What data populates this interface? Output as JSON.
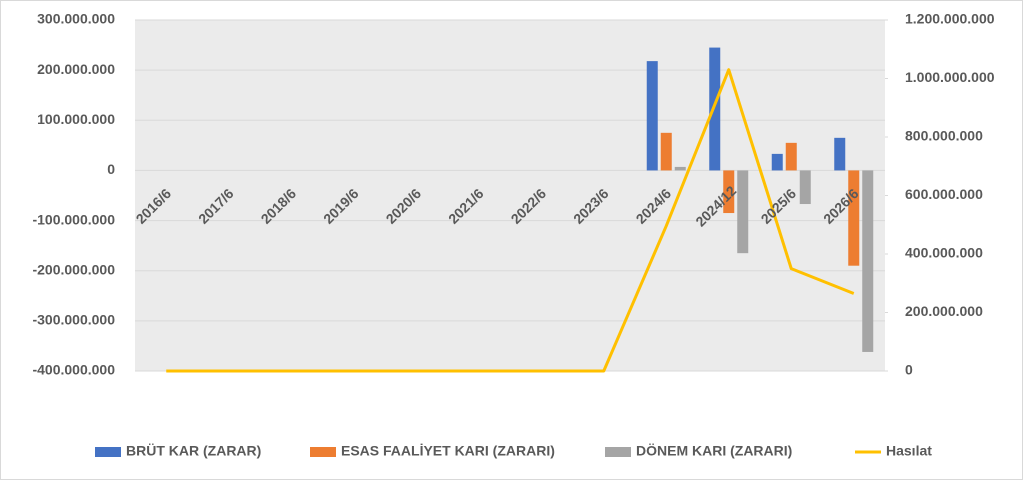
{
  "chart_data": {
    "type": "bar",
    "categories": [
      "2016/6",
      "2017/6",
      "2018/6",
      "2019/6",
      "2020/6",
      "2021/6",
      "2022/6",
      "2023/6",
      "2024/6",
      "2024/12",
      "2025/6",
      "2026/6"
    ],
    "series": [
      {
        "name": "BRÜT KAR (ZARAR)",
        "color": "#4472c4",
        "values": [
          0,
          0,
          0,
          0,
          0,
          0,
          0,
          0,
          218000000,
          245000000,
          33000000,
          65000000
        ]
      },
      {
        "name": "ESAS FAALİYET KARI (ZARARI)",
        "color": "#ed7d31",
        "values": [
          0,
          0,
          0,
          0,
          0,
          0,
          0,
          0,
          75000000,
          -85000000,
          55000000,
          -190000000
        ]
      },
      {
        "name": "DÖNEM KARI (ZARARI)",
        "color": "#a5a5a5",
        "values": [
          0,
          0,
          0,
          0,
          0,
          0,
          0,
          0,
          7000000,
          -165000000,
          -67000000,
          -362000000
        ]
      },
      {
        "name": "Hasılat",
        "color": "#ffc000",
        "type": "line",
        "axis": "y2",
        "values": [
          0,
          0,
          0,
          0,
          0,
          0,
          0,
          0,
          496000000,
          1030000000,
          350000000,
          265000000
        ]
      }
    ],
    "ylim": [
      -400000000,
      300000000
    ],
    "yticks": [
      {
        "value": -400000000,
        "label": "-400.000.000"
      },
      {
        "value": -300000000,
        "label": "-300.000.000"
      },
      {
        "value": -200000000,
        "label": "-200.000.000"
      },
      {
        "value": -100000000,
        "label": "-100.000.000"
      },
      0,
      {
        "value": 100000000,
        "label": "100.000.000"
      },
      {
        "value": 200000000,
        "label": "200.000.000"
      },
      {
        "value": 300000000,
        "label": "300.000.000"
      }
    ],
    "y2lim": [
      0,
      1200000000
    ],
    "y2ticks": [
      0,
      {
        "value": 200000000,
        "label": "200.000.000"
      },
      {
        "value": 400000000,
        "label": "400.000.000"
      },
      {
        "value": 600000000,
        "label": "600.000.000"
      },
      {
        "value": 800000000,
        "label": "800.000.000"
      },
      {
        "value": 1000000000,
        "label": "1.000.000.000"
      },
      {
        "value": 1200000000,
        "label": "1.200.000.000"
      }
    ],
    "grid": true,
    "legend": "bottom"
  }
}
